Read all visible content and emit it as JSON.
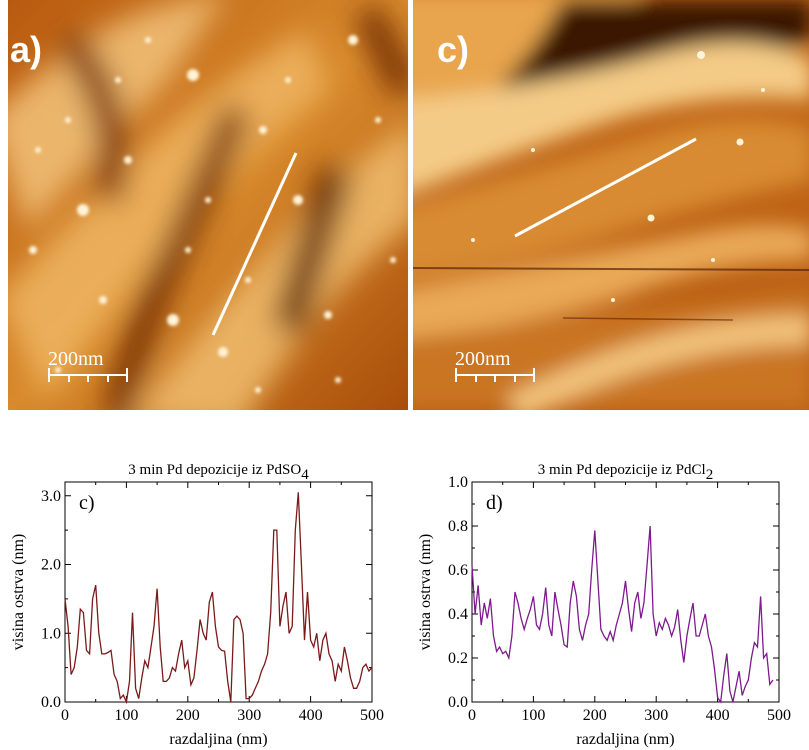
{
  "images": {
    "left": {
      "panel_label": "a)",
      "scale_bar_label": "200nm"
    },
    "right": {
      "panel_label": "c)",
      "scale_bar_label": "200nm"
    }
  },
  "chart_data": [
    {
      "type": "line",
      "title": "3 min Pd depozicije iz PdSO",
      "title_subscript": "4",
      "panel_label": "c)",
      "xlabel": "razdaljina (nm)",
      "ylabel": "visina ostrva (nm)",
      "xlim": [
        0,
        500
      ],
      "ylim": [
        0,
        3.2
      ],
      "xticks": [
        0,
        100,
        200,
        300,
        400,
        500
      ],
      "yticks": [
        0.0,
        1.0,
        2.0,
        3.0
      ],
      "ytick_labels": [
        "0.0",
        "1.0",
        "2.0",
        "3.0"
      ],
      "color": "#7b1a1a",
      "x": [
        0,
        5,
        10,
        15,
        20,
        25,
        30,
        35,
        40,
        45,
        50,
        55,
        60,
        65,
        70,
        75,
        80,
        85,
        90,
        95,
        100,
        105,
        110,
        115,
        120,
        125,
        130,
        135,
        140,
        145,
        150,
        155,
        160,
        165,
        170,
        175,
        180,
        185,
        190,
        195,
        200,
        205,
        210,
        215,
        220,
        225,
        230,
        235,
        240,
        245,
        250,
        255,
        260,
        265,
        270,
        275,
        280,
        285,
        290,
        295,
        300,
        305,
        310,
        315,
        320,
        325,
        330,
        335,
        340,
        345,
        350,
        355,
        360,
        365,
        370,
        375,
        380,
        385,
        390,
        395,
        400,
        405,
        410,
        415,
        420,
        425,
        430,
        435,
        440,
        445,
        450,
        455,
        460,
        465,
        470,
        475,
        480,
        485,
        490,
        495,
        500
      ],
      "y": [
        1.5,
        1.1,
        0.4,
        0.5,
        0.8,
        1.35,
        1.3,
        0.75,
        0.7,
        1.5,
        1.7,
        1.0,
        0.7,
        0.7,
        0.72,
        0.75,
        0.4,
        0.3,
        0.05,
        0.1,
        0.0,
        0.3,
        1.3,
        0.2,
        0.05,
        0.35,
        0.6,
        0.5,
        0.8,
        1.1,
        1.65,
        0.8,
        0.3,
        0.3,
        0.35,
        0.5,
        0.45,
        0.7,
        0.9,
        0.5,
        0.6,
        0.25,
        0.35,
        0.75,
        1.2,
        1.0,
        0.9,
        1.45,
        1.6,
        1.1,
        0.8,
        0.75,
        0.74,
        0.3,
        0.0,
        1.2,
        1.25,
        1.2,
        1.0,
        0.05,
        0.05,
        0.1,
        0.2,
        0.3,
        0.45,
        0.55,
        0.7,
        1.3,
        2.5,
        2.5,
        1.1,
        1.4,
        1.6,
        1.0,
        1.1,
        2.5,
        3.05,
        2.0,
        0.9,
        1.6,
        0.9,
        0.8,
        1.0,
        0.6,
        0.9,
        1.0,
        0.7,
        0.6,
        0.3,
        0.55,
        0.45,
        0.8,
        0.6,
        0.35,
        0.2,
        0.2,
        0.3,
        0.5,
        0.55,
        0.45,
        0.5
      ]
    },
    {
      "type": "line",
      "title": "3 min Pd depozicije iz PdCl",
      "title_subscript": "2",
      "panel_label": "d)",
      "xlabel": "razdaljina (nm)",
      "ylabel": "visina ostrva (nm)",
      "xlim": [
        0,
        500
      ],
      "ylim": [
        0,
        1.0
      ],
      "xticks": [
        0,
        100,
        200,
        300,
        400,
        500
      ],
      "yticks": [
        0.0,
        0.2,
        0.4,
        0.6,
        0.8,
        1.0
      ],
      "ytick_labels": [
        "0.0",
        "0.2",
        "0.4",
        "0.6",
        "0.8",
        "1.0"
      ],
      "color": "#7d1a8c",
      "x": [
        0,
        5,
        10,
        15,
        20,
        25,
        30,
        35,
        40,
        45,
        50,
        55,
        60,
        65,
        70,
        75,
        80,
        85,
        90,
        95,
        100,
        105,
        110,
        115,
        120,
        125,
        130,
        135,
        140,
        145,
        150,
        155,
        160,
        165,
        170,
        175,
        180,
        185,
        190,
        195,
        200,
        205,
        210,
        215,
        220,
        225,
        230,
        235,
        240,
        245,
        250,
        255,
        260,
        265,
        270,
        275,
        280,
        285,
        290,
        295,
        300,
        305,
        310,
        315,
        320,
        325,
        330,
        335,
        340,
        345,
        350,
        355,
        360,
        365,
        370,
        375,
        380,
        385,
        390,
        395,
        400,
        405,
        410,
        415,
        420,
        425,
        430,
        435,
        440,
        445,
        450,
        455,
        460,
        465,
        470,
        475,
        480,
        485,
        490
      ],
      "y": [
        0.62,
        0.4,
        0.53,
        0.35,
        0.45,
        0.38,
        0.47,
        0.3,
        0.23,
        0.25,
        0.22,
        0.23,
        0.2,
        0.3,
        0.5,
        0.45,
        0.38,
        0.33,
        0.38,
        0.42,
        0.48,
        0.35,
        0.33,
        0.4,
        0.52,
        0.35,
        0.3,
        0.5,
        0.42,
        0.35,
        0.26,
        0.25,
        0.45,
        0.55,
        0.48,
        0.33,
        0.28,
        0.35,
        0.4,
        0.6,
        0.78,
        0.55,
        0.33,
        0.3,
        0.28,
        0.32,
        0.28,
        0.35,
        0.4,
        0.45,
        0.55,
        0.42,
        0.32,
        0.45,
        0.5,
        0.38,
        0.45,
        0.62,
        0.8,
        0.4,
        0.3,
        0.36,
        0.33,
        0.38,
        0.35,
        0.3,
        0.34,
        0.42,
        0.28,
        0.18,
        0.3,
        0.38,
        0.45,
        0.3,
        0.3,
        0.35,
        0.4,
        0.3,
        0.25,
        0.15,
        0.02,
        0.0,
        0.12,
        0.22,
        0.05,
        0.0,
        0.07,
        0.14,
        0.03,
        0.07,
        0.1,
        0.2,
        0.27,
        0.25,
        0.48,
        0.2,
        0.22,
        0.08,
        0.1
      ]
    }
  ]
}
